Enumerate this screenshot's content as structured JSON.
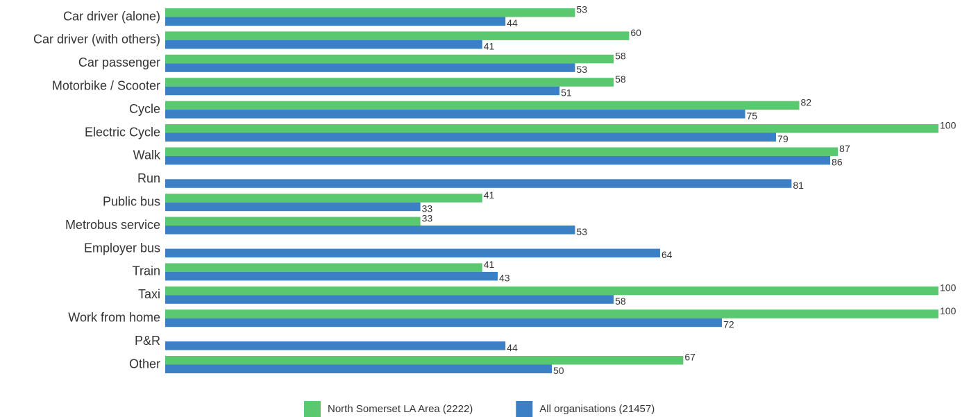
{
  "chart_data": {
    "type": "hbar",
    "categories": [
      "Car driver (alone)",
      "Car driver (with others)",
      "Car passenger",
      "Motorbike / Scooter",
      "Cycle",
      "Electric Cycle",
      "Walk",
      "Run",
      "Public bus",
      "Metrobus service",
      "Employer bus",
      "Train",
      "Taxi",
      "Work from home",
      "P&R",
      "Other"
    ],
    "series": [
      {
        "name": "North Somerset LA Area (2222)",
        "color": "#5ac86e",
        "values": [
          53,
          60,
          58,
          58,
          82,
          100,
          87,
          null,
          41,
          33,
          null,
          41,
          100,
          100,
          null,
          67
        ]
      },
      {
        "name": "All organisations (21457)",
        "color": "#3b7fc4",
        "values": [
          44,
          41,
          53,
          51,
          75,
          79,
          86,
          81,
          33,
          53,
          64,
          43,
          58,
          72,
          44,
          50
        ]
      }
    ],
    "xlim": [
      0,
      100
    ],
    "legend": "bottom"
  }
}
